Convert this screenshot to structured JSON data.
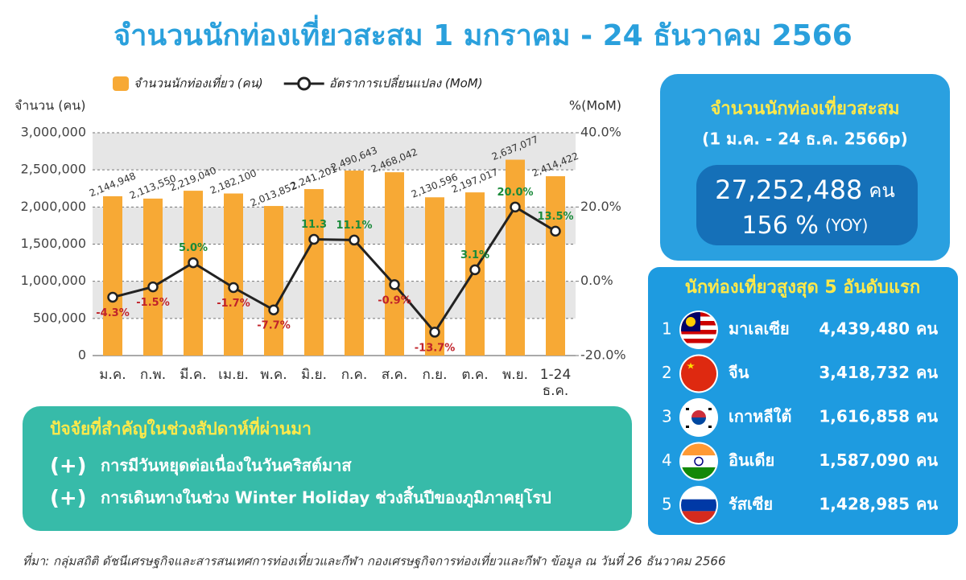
{
  "chart_data": {
    "type": "bar",
    "title": "จำนวนนักท่องเที่ยวสะสม 1 มกราคม - 24 ธันวาคม 2566",
    "ylabel": "จำนวน (คน)",
    "y2label": "%(MoM)",
    "categories": [
      "ม.ค.",
      "ก.พ.",
      "มี.ค.",
      "เม.ย.",
      "พ.ค.",
      "มิ.ย.",
      "ก.ค.",
      "ส.ค.",
      "ก.ย.",
      "ต.ค.",
      "พ.ย.",
      "1-24 ธ.ค."
    ],
    "series": [
      {
        "name": "จำนวนนักท่องเที่ยว (คน)",
        "type": "bar",
        "color": "#f7a935",
        "values": [
          2144948,
          2113550,
          2219040,
          2182100,
          2013852,
          2241201,
          2490643,
          2468042,
          2130596,
          2197017,
          2637077,
          2414422
        ],
        "value_labels": [
          "2,144,948",
          "2,113,550",
          "2,219,040",
          "2,182,100",
          "2,013,852",
          "2,241,201",
          "2,490,643",
          "2,468,042",
          "2,130,596",
          "2,197,017",
          "2,637,077",
          "2,414,422"
        ]
      },
      {
        "name": "อัตราการเปลี่ยนแปลง (MoM)",
        "type": "line",
        "axis": "y2",
        "color": "#222222",
        "values": [
          -4.3,
          -1.5,
          5.0,
          -1.7,
          -7.7,
          11.3,
          11.1,
          -0.9,
          -13.7,
          3.1,
          20.0,
          13.5
        ],
        "value_labels": [
          "-4.3%",
          "-1.5%",
          "5.0%",
          "-1.7%",
          "-7.7%",
          "11.3",
          "11.1%",
          "-0.9%",
          "-13.7%",
          "3.1%",
          "20.0%",
          "13.5%"
        ]
      }
    ],
    "ylim": [
      0,
      3000000
    ],
    "yticks": [
      0,
      {
        "value": 500000,
        "label": "500,000"
      },
      {
        "value": 1000000,
        "label": "1,000,000"
      },
      {
        "value": 1500000,
        "label": "1,500,000"
      },
      {
        "value": 2000000,
        "label": "2,000,000"
      },
      {
        "value": 2500000,
        "label": "2,500,000"
      },
      {
        "value": 3000000,
        "label": "3,000,000"
      }
    ],
    "y2lim": [
      -20,
      40
    ],
    "y2ticks": [
      {
        "value": -20,
        "label": "-20.0%"
      },
      {
        "value": 0,
        "label": "0.0%"
      },
      {
        "value": 20,
        "label": "20.0%"
      },
      {
        "value": 40,
        "label": "40.0%"
      }
    ],
    "grid": true
  },
  "summary": {
    "title": "จำนวนนักท่องเที่ยวสะสม",
    "period": "(1 ม.ค. - 24 ธ.ค. 2566p)",
    "total": "27,252,488",
    "unit": "คน",
    "yoy": "156 %",
    "yoy_label": "(YOY)"
  },
  "top5": {
    "title": "นักท่องเที่ยวสูงสุด 5 อันดับแรก",
    "rows": [
      {
        "rank": 1,
        "country": "มาเลเซีย",
        "value": "4,439,480",
        "unit": "คน"
      },
      {
        "rank": 2,
        "country": "จีน",
        "value": "3,418,732",
        "unit": "คน"
      },
      {
        "rank": 3,
        "country": "เกาหลีใต้",
        "value": "1,616,858",
        "unit": "คน"
      },
      {
        "rank": 4,
        "country": "อินเดีย",
        "value": "1,587,090",
        "unit": "คน"
      },
      {
        "rank": 5,
        "country": "รัสเซีย",
        "value": "1,428,985",
        "unit": "คน"
      }
    ]
  },
  "factors": {
    "title": "ปัจจัยที่สำคัญในช่วงสัปดาห์ที่ผ่านมา",
    "items": [
      {
        "sign": "(+)",
        "text": "การมีวันหยุดต่อเนื่องในวันคริสต์มาส"
      },
      {
        "sign": "(+)",
        "text": "การเดินทางในช่วง Winter Holiday ช่วงสิ้นปีของภูมิภาคยุโรป"
      }
    ]
  },
  "source": "ที่มา: กลุ่มสถิติ ดัชนีเศรษฐกิจและสารสนเทศการท่องเที่ยวและกีฬา กองเศรษฐกิจการท่องเที่ยวและกีฬา ข้อมูล ณ วันที่ 26 ธันวาคม 2566"
}
